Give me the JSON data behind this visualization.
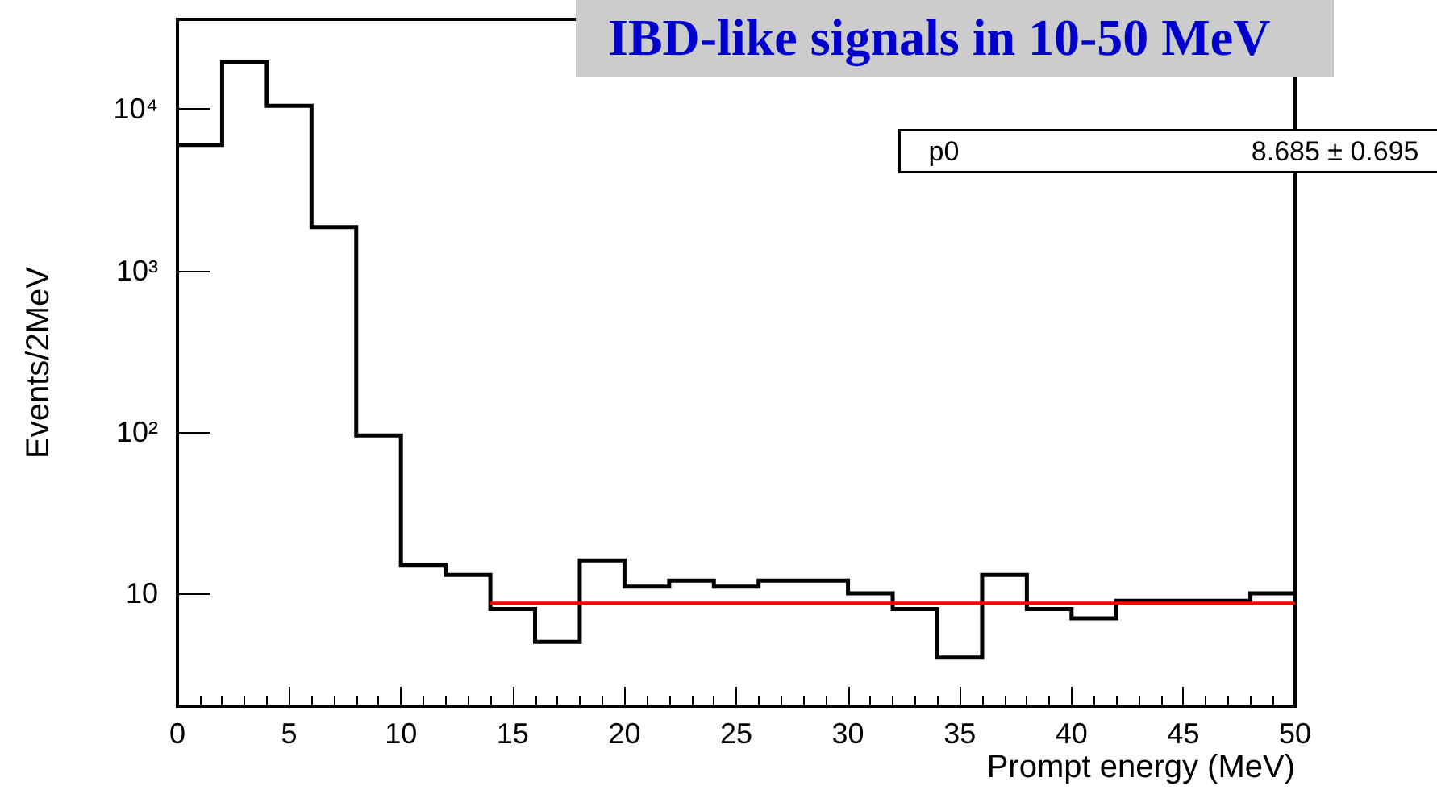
{
  "chart_data": {
    "type": "histogram",
    "title": "IBD-like signals in 10-50 MeV",
    "xlabel": "Prompt energy (MeV)",
    "ylabel": "Events/2MeV",
    "annotations": [
      "p0",
      "8.685 ± 0.695"
    ],
    "bins": [
      0,
      2,
      4,
      6,
      8,
      10,
      12,
      14,
      16,
      18,
      20,
      22,
      24,
      26,
      28,
      30,
      32,
      34,
      36,
      38,
      40,
      42,
      44,
      46,
      48,
      50
    ],
    "series": [
      {
        "color": "#000000",
        "values": [
          6000,
          19500,
          10500,
          1860,
          95,
          15,
          13,
          8,
          5,
          16,
          11,
          12,
          11,
          12,
          12,
          10,
          8,
          4,
          13,
          8,
          7,
          9,
          9,
          9,
          10
        ]
      },
      {
        "type": "line",
        "color": "#ff0000",
        "x": [
          14,
          50
        ],
        "values": [
          8.685,
          8.685
        ]
      }
    ],
    "log": true,
    "xlim": [
      0,
      50
    ],
    "xticks": [
      0,
      5,
      10,
      15,
      20,
      25,
      30,
      35,
      40,
      45,
      50
    ],
    "ylim": [
      2,
      36000
    ],
    "yticks": [
      10,
      {
        "value": 100,
        "label": "10²"
      },
      {
        "value": 1000,
        "label": "10³"
      },
      {
        "value": 10000,
        "label": "10⁴"
      }
    ]
  }
}
